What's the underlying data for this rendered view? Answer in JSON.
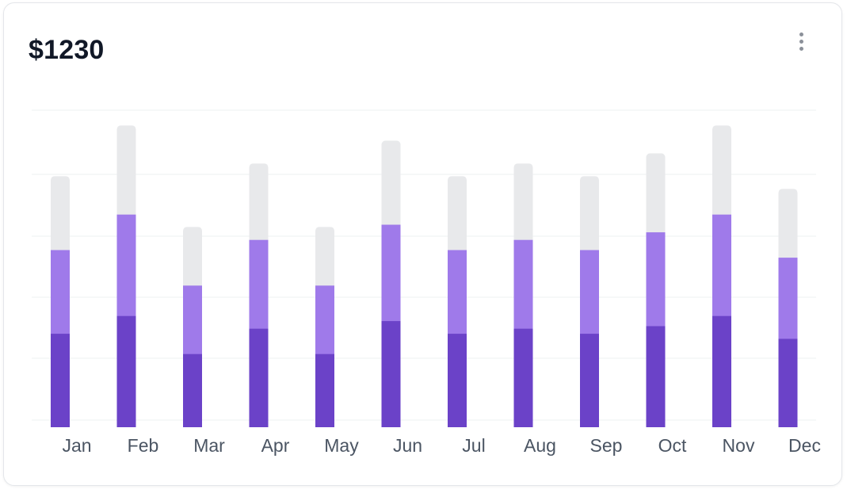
{
  "card": {
    "title": "$1230"
  },
  "colors": {
    "segment_bottom": "#6b42c8",
    "segment_middle": "#9f7aea",
    "segment_top": "#e8e9eb",
    "gridline": "#eef0f2",
    "axis_label": "#4b5563"
  },
  "icons": {
    "menu": "more-vertical-icon"
  },
  "chart_data": {
    "type": "bar",
    "stacked": true,
    "categories": [
      "Jan",
      "Feb",
      "Mar",
      "Apr",
      "May",
      "Jun",
      "Jul",
      "Aug",
      "Sep",
      "Oct",
      "Nov",
      "Dec"
    ],
    "series": [
      {
        "values": [
          37,
          44,
          29,
          39,
          29,
          42,
          37,
          39,
          37,
          40,
          44,
          35
        ]
      },
      {
        "values": [
          33,
          40,
          27,
          35,
          27,
          38,
          33,
          35,
          33,
          37,
          40,
          32
        ]
      },
      {
        "values": [
          29,
          35,
          23,
          30,
          23,
          33,
          29,
          30,
          29,
          31,
          35,
          27
        ]
      }
    ],
    "ylim": [
      0,
      125
    ],
    "grid": true,
    "legend": "none"
  }
}
